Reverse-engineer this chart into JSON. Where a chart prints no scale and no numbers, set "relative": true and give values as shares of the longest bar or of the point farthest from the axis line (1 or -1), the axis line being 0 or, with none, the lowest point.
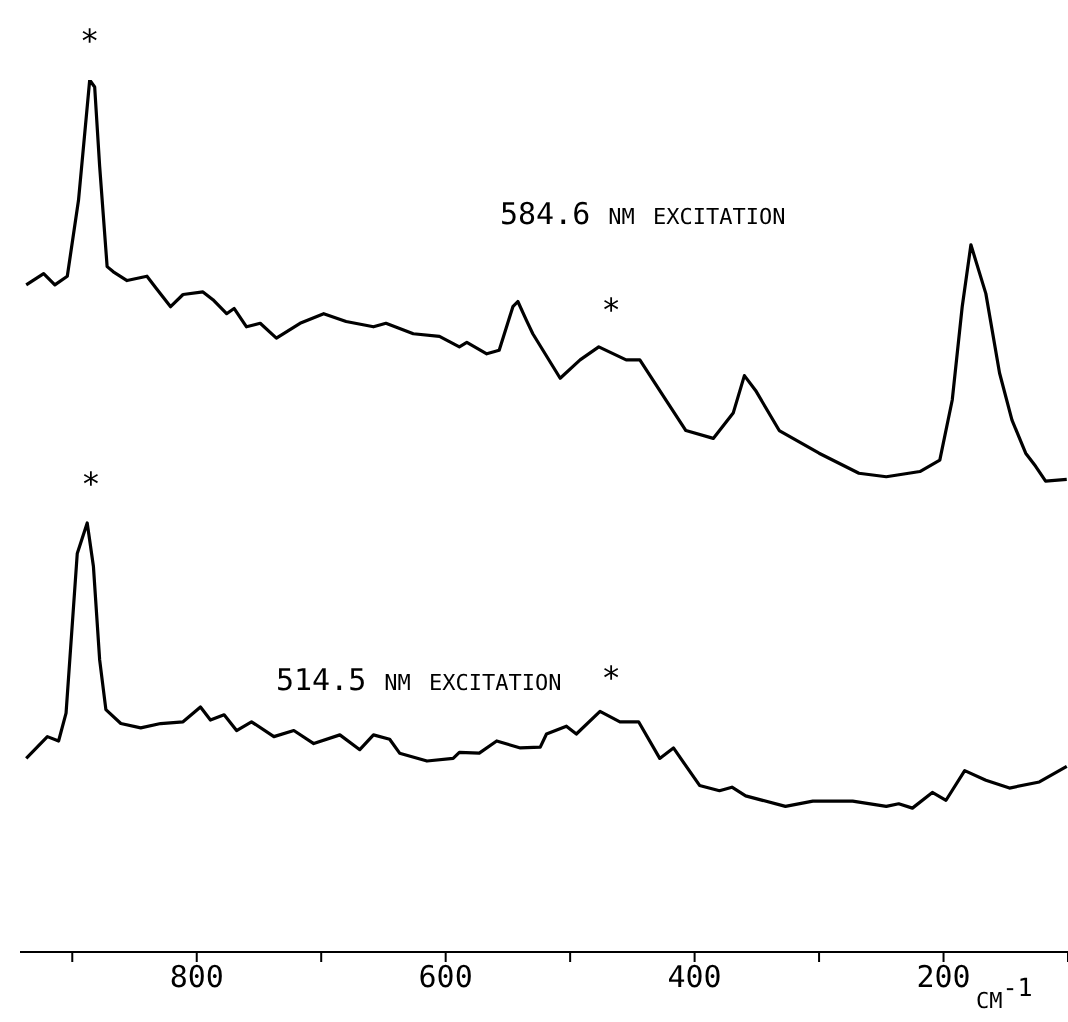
{
  "chart_data": {
    "type": "line",
    "relative": true,
    "xlabel": "cm$^{-1}$",
    "xlim": [
      942,
      100
    ],
    "xticks": [
      {
        "value": 900,
        "label": null
      },
      800,
      {
        "value": 700,
        "label": null
      },
      600,
      {
        "value": 500,
        "label": null
      },
      400,
      {
        "value": 300,
        "label": null
      },
      200,
      {
        "value": 100,
        "label": null
      }
    ],
    "annotations": [
      {
        "text": "*",
        "x": 886,
        "y": 1
      },
      {
        "text": "*",
        "x": 467,
        "y": 0.691
      },
      {
        "text": "*",
        "x": 885,
        "y": 0.492
      },
      {
        "text": "*",
        "x": 467,
        "y": 0.269
      }
    ],
    "series": [
      {
        "name": "584.6 nm excitation",
        "color": "#000000",
        "x": [
          937,
          923,
          914,
          904,
          895,
          889,
          886,
          882,
          878,
          872,
          867,
          856,
          840,
          832,
          821,
          811,
          795,
          787,
          776,
          770,
          760,
          749,
          736,
          717,
          698,
          680,
          658,
          648,
          626,
          605,
          589,
          583,
          567,
          557,
          546,
          542,
          535,
          530,
          508,
          492,
          477,
          455,
          444,
          423,
          407,
          385,
          369,
          360,
          351,
          332,
          300,
          268,
          246,
          219,
          203,
          193,
          185,
          178,
          166,
          155,
          145,
          134,
          126,
          118,
          101
        ],
        "values": [
          0.765,
          0.778,
          0.765,
          0.775,
          0.862,
          0.954,
          1,
          0.992,
          0.901,
          0.786,
          0.78,
          0.77,
          0.775,
          0.76,
          0.74,
          0.754,
          0.757,
          0.748,
          0.732,
          0.738,
          0.717,
          0.721,
          0.704,
          0.721,
          0.732,
          0.723,
          0.717,
          0.721,
          0.709,
          0.706,
          0.694,
          0.699,
          0.686,
          0.69,
          0.74,
          0.746,
          0.724,
          0.709,
          0.658,
          0.679,
          0.694,
          0.679,
          0.679,
          0.633,
          0.598,
          0.589,
          0.618,
          0.661,
          0.644,
          0.598,
          0.572,
          0.549,
          0.545,
          0.551,
          0.564,
          0.633,
          0.74,
          0.811,
          0.755,
          0.664,
          0.61,
          0.572,
          0.557,
          0.54,
          0.542
        ]
      },
      {
        "name": "514.5 nm excitation",
        "color": "#000000",
        "x": [
          937,
          920,
          911,
          905,
          896,
          888,
          883,
          878,
          873,
          861,
          845,
          829,
          811,
          797,
          789,
          778,
          768,
          756,
          738,
          722,
          706,
          685,
          669,
          658,
          645,
          637,
          615,
          594,
          589,
          573,
          559,
          540,
          524,
          519,
          503,
          495,
          476,
          460,
          445,
          428,
          417,
          396,
          380,
          370,
          359,
          327,
          305,
          273,
          246,
          236,
          225,
          209,
          198,
          183,
          166,
          147,
          123,
          101
        ],
        "values": [
          0.222,
          0.247,
          0.242,
          0.274,
          0.457,
          0.492,
          0.442,
          0.335,
          0.278,
          0.262,
          0.257,
          0.262,
          0.264,
          0.281,
          0.266,
          0.272,
          0.254,
          0.264,
          0.247,
          0.254,
          0.239,
          0.249,
          0.232,
          0.249,
          0.244,
          0.228,
          0.219,
          0.222,
          0.229,
          0.228,
          0.242,
          0.234,
          0.235,
          0.25,
          0.259,
          0.25,
          0.276,
          0.264,
          0.264,
          0.222,
          0.234,
          0.191,
          0.185,
          0.189,
          0.179,
          0.167,
          0.173,
          0.173,
          0.167,
          0.17,
          0.165,
          0.183,
          0.174,
          0.208,
          0.197,
          0.188,
          0.195,
          0.213
        ]
      }
    ]
  }
}
